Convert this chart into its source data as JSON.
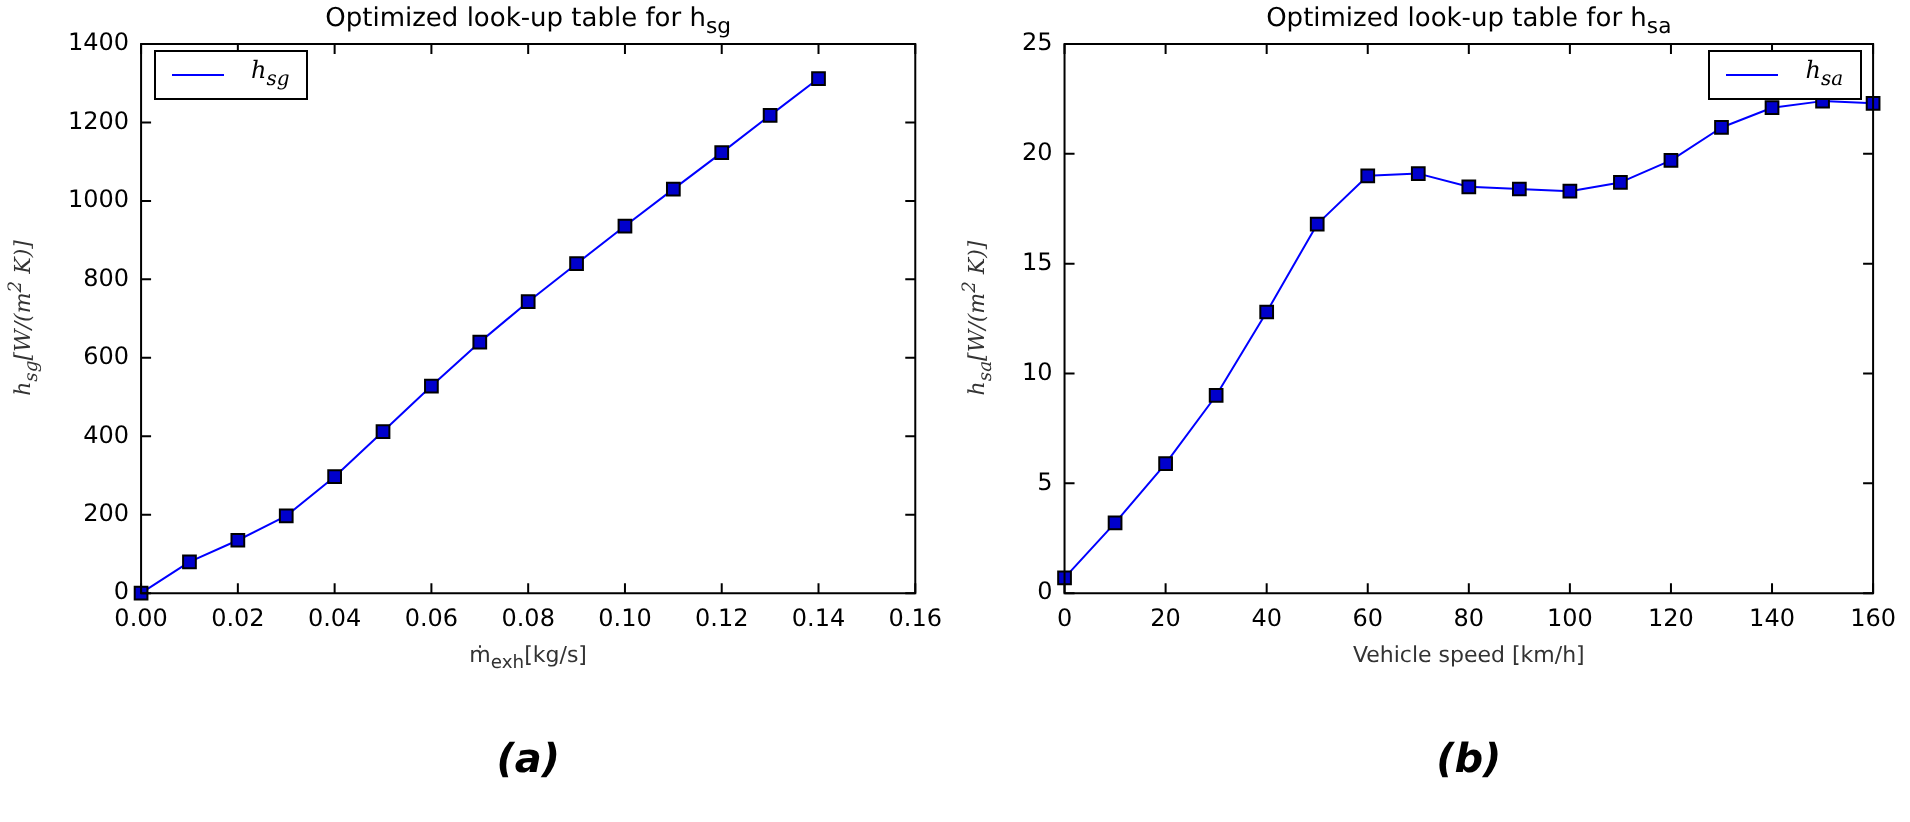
{
  "chart_data": [
    {
      "type": "line",
      "title": "Optimized look-up table for h$_{sg}$",
      "xlabel": "ṁ$_{exh}$[kg/s]",
      "ylabel": "h$_{sg}$[W/(m$^{2}$ K)]",
      "annotations": [
        "(a)"
      ],
      "x": [
        0,
        0.01,
        0.02,
        0.03,
        0.04,
        0.05,
        0.06,
        0.07,
        0.08,
        0.09,
        0.1,
        0.11,
        0.12,
        0.13,
        0.14
      ],
      "series": [
        {
          "name": "h$_{sg}$",
          "color": "#0000ff",
          "values": [
            0,
            80,
            135,
            197,
            297,
            412,
            528,
            640,
            743,
            840,
            936,
            1030,
            1123,
            1218,
            1312
          ]
        }
      ],
      "xlim": [
        0,
        0.16
      ],
      "xticks": [
        {
          "value": 0,
          "label": "0.00"
        },
        {
          "value": 0.02,
          "label": "0.02"
        },
        {
          "value": 0.04,
          "label": "0.04"
        },
        {
          "value": 0.06,
          "label": "0.06"
        },
        {
          "value": 0.08,
          "label": "0.08"
        },
        {
          "value": 0.1,
          "label": "0.10"
        },
        {
          "value": 0.12,
          "label": "0.12"
        },
        {
          "value": 0.14,
          "label": "0.14"
        },
        {
          "value": 0.16,
          "label": "0.16"
        }
      ],
      "ylim": [
        0,
        1400
      ],
      "yticks": [
        0,
        200,
        400,
        600,
        800,
        1000,
        1200,
        1400
      ],
      "legend": "top left",
      "marker": "square",
      "line_style": "solid"
    },
    {
      "type": "line",
      "title": "Optimized look-up table for h$_{sa}$",
      "xlabel": "Vehicle speed [km/h]",
      "ylabel": "h$_{sa}$[W/(m$^{2}$ K)]",
      "annotations": [
        "(b)"
      ],
      "x": [
        0,
        10,
        20,
        30,
        40,
        50,
        60,
        70,
        80,
        90,
        100,
        110,
        120,
        130,
        140,
        150,
        160
      ],
      "series": [
        {
          "name": "h$_{sa}$",
          "color": "#0000ff",
          "values": [
            0.7,
            3.2,
            5.9,
            9.0,
            12.8,
            16.8,
            19.0,
            19.1,
            18.5,
            18.4,
            18.3,
            18.7,
            19.7,
            21.2,
            22.1,
            22.4,
            22.3
          ]
        }
      ],
      "xlim": [
        0,
        160
      ],
      "xticks": [
        0,
        20,
        40,
        60,
        80,
        100,
        120,
        140,
        160
      ],
      "ylim": [
        0,
        25
      ],
      "yticks": [
        0,
        5,
        10,
        15,
        20,
        25
      ],
      "legend": "top right",
      "marker": "square",
      "line_style": "solid"
    }
  ]
}
